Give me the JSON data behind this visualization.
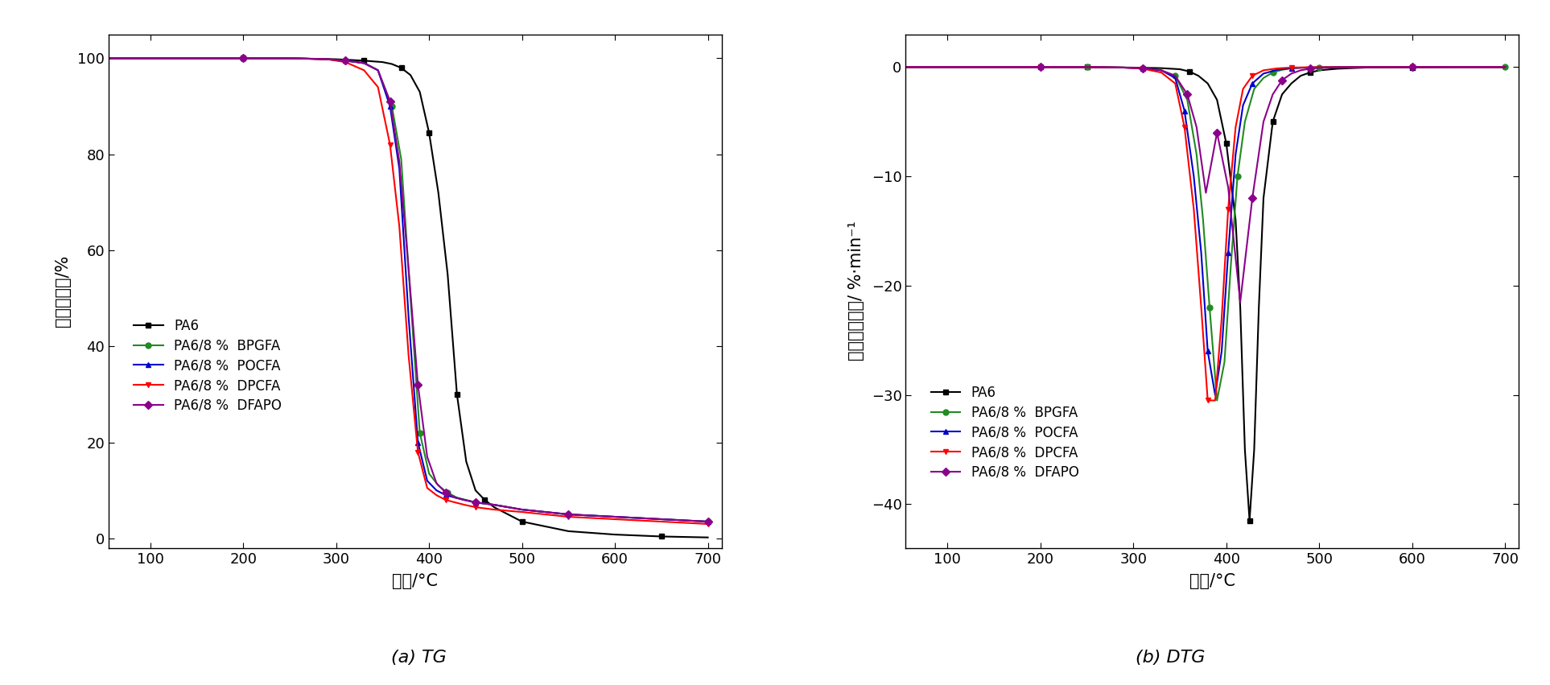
{
  "tg_curves": {
    "PA6": {
      "x": [
        50,
        100,
        150,
        200,
        250,
        300,
        330,
        350,
        360,
        370,
        380,
        390,
        400,
        410,
        420,
        430,
        440,
        450,
        460,
        470,
        480,
        500,
        550,
        600,
        650,
        700
      ],
      "y": [
        100,
        100,
        100,
        100,
        100,
        99.8,
        99.5,
        99.2,
        98.8,
        98.0,
        96.5,
        93.0,
        84.5,
        72.0,
        55.0,
        30.0,
        16.0,
        10.0,
        8.0,
        6.5,
        5.5,
        3.5,
        1.5,
        0.8,
        0.4,
        0.2
      ],
      "color": "#000000",
      "marker": "s"
    },
    "BPGFA": {
      "x": [
        50,
        100,
        150,
        200,
        250,
        290,
        310,
        330,
        345,
        360,
        370,
        380,
        390,
        400,
        410,
        420,
        430,
        440,
        450,
        470,
        500,
        550,
        600,
        650,
        700
      ],
      "y": [
        100,
        100,
        100,
        100,
        100,
        99.8,
        99.5,
        99.0,
        97.5,
        90.0,
        79.0,
        50.0,
        22.0,
        13.5,
        11.0,
        9.5,
        8.5,
        8.0,
        7.5,
        7.0,
        6.0,
        5.0,
        4.5,
        4.0,
        3.5
      ],
      "color": "#228B22",
      "marker": "o"
    },
    "POCFA": {
      "x": [
        50,
        100,
        150,
        200,
        250,
        290,
        310,
        330,
        345,
        358,
        368,
        378,
        388,
        398,
        408,
        418,
        428,
        438,
        450,
        470,
        500,
        550,
        600,
        650,
        700
      ],
      "y": [
        100,
        100,
        100,
        100,
        100,
        99.8,
        99.5,
        99.0,
        97.5,
        90.0,
        77.0,
        46.0,
        20.0,
        12.0,
        10.0,
        9.0,
        8.5,
        8.0,
        7.5,
        7.0,
        6.0,
        5.0,
        4.5,
        4.0,
        3.5
      ],
      "color": "#0000CD",
      "marker": "^"
    },
    "DPCFA": {
      "x": [
        50,
        100,
        150,
        200,
        250,
        290,
        310,
        330,
        345,
        358,
        368,
        378,
        388,
        398,
        408,
        418,
        428,
        438,
        450,
        470,
        500,
        550,
        600,
        650,
        700
      ],
      "y": [
        100,
        100,
        100,
        100,
        100,
        99.8,
        99.2,
        97.5,
        94.0,
        82.0,
        65.0,
        38.0,
        18.0,
        10.5,
        9.0,
        8.0,
        7.5,
        7.0,
        6.5,
        6.0,
        5.5,
        4.5,
        4.0,
        3.5,
        3.0
      ],
      "color": "#FF0000",
      "marker": "v"
    },
    "DFAPO": {
      "x": [
        50,
        100,
        150,
        200,
        250,
        290,
        310,
        330,
        345,
        358,
        368,
        378,
        388,
        398,
        408,
        418,
        428,
        438,
        450,
        470,
        500,
        550,
        600,
        650,
        700
      ],
      "y": [
        100,
        100,
        100,
        100,
        100,
        99.8,
        99.5,
        99.0,
        97.5,
        91.0,
        78.5,
        56.0,
        32.0,
        17.0,
        11.5,
        9.5,
        8.5,
        8.0,
        7.5,
        7.0,
        6.0,
        5.0,
        4.5,
        4.0,
        3.5
      ],
      "color": "#8B008B",
      "marker": "D"
    }
  },
  "dtg_curves": {
    "PA6": {
      "x": [
        50,
        100,
        150,
        200,
        250,
        300,
        330,
        350,
        360,
        370,
        380,
        390,
        400,
        410,
        415,
        420,
        425,
        430,
        435,
        440,
        450,
        460,
        470,
        480,
        490,
        500,
        520,
        550,
        600,
        650,
        700
      ],
      "y": [
        0,
        0,
        0,
        0,
        0,
        -0.05,
        -0.1,
        -0.2,
        -0.4,
        -0.8,
        -1.5,
        -3.0,
        -7.0,
        -14.0,
        -22.0,
        -35.0,
        -41.5,
        -35.0,
        -22.0,
        -12.0,
        -5.0,
        -2.5,
        -1.5,
        -0.8,
        -0.5,
        -0.3,
        -0.15,
        -0.05,
        -0.02,
        0,
        0
      ],
      "color": "#000000",
      "marker": "s"
    },
    "BPGFA": {
      "x": [
        50,
        100,
        150,
        200,
        250,
        290,
        310,
        330,
        345,
        358,
        368,
        375,
        382,
        390,
        398,
        405,
        412,
        420,
        430,
        440,
        450,
        460,
        470,
        480,
        500,
        550,
        600,
        650,
        700
      ],
      "y": [
        0,
        0,
        0,
        0,
        0,
        -0.05,
        -0.1,
        -0.3,
        -0.8,
        -3.0,
        -8.0,
        -14.0,
        -22.0,
        -30.5,
        -27.0,
        -18.0,
        -10.0,
        -5.0,
        -2.0,
        -1.0,
        -0.5,
        -0.25,
        -0.12,
        -0.06,
        -0.02,
        -0.01,
        0,
        0,
        0
      ],
      "color": "#228B22",
      "marker": "o"
    },
    "POCFA": {
      "x": [
        50,
        100,
        150,
        200,
        250,
        290,
        310,
        330,
        345,
        355,
        365,
        373,
        380,
        388,
        395,
        402,
        410,
        418,
        428,
        440,
        455,
        470,
        490,
        520,
        600,
        700
      ],
      "y": [
        0,
        0,
        0,
        0,
        0,
        -0.05,
        -0.1,
        -0.3,
        -1.0,
        -4.0,
        -10.0,
        -17.0,
        -26.0,
        -30.0,
        -26.0,
        -17.0,
        -8.0,
        -3.5,
        -1.5,
        -0.6,
        -0.25,
        -0.1,
        -0.04,
        -0.01,
        0,
        0
      ],
      "color": "#0000CD",
      "marker": "^"
    },
    "DPCFA": {
      "x": [
        50,
        100,
        150,
        200,
        250,
        290,
        310,
        330,
        345,
        355,
        365,
        373,
        380,
        388,
        395,
        402,
        410,
        418,
        428,
        440,
        455,
        470,
        490,
        520,
        600,
        700
      ],
      "y": [
        0,
        0,
        0,
        0,
        0,
        -0.05,
        -0.15,
        -0.5,
        -1.5,
        -5.5,
        -13.0,
        -22.0,
        -30.5,
        -30.5,
        -23.0,
        -13.0,
        -5.5,
        -2.0,
        -0.8,
        -0.3,
        -0.12,
        -0.05,
        -0.02,
        -0.01,
        0,
        0
      ],
      "color": "#FF0000",
      "marker": "v"
    },
    "DFAPO": {
      "x": [
        50,
        100,
        150,
        200,
        250,
        290,
        310,
        330,
        345,
        358,
        368,
        378,
        390,
        402,
        415,
        428,
        440,
        450,
        460,
        470,
        480,
        490,
        500,
        520,
        600,
        700
      ],
      "y": [
        0,
        0,
        0,
        0,
        0,
        -0.05,
        -0.1,
        -0.3,
        -0.8,
        -2.5,
        -5.5,
        -11.5,
        -6.0,
        -11.0,
        -21.5,
        -12.0,
        -5.0,
        -2.5,
        -1.2,
        -0.6,
        -0.3,
        -0.15,
        -0.08,
        -0.02,
        0,
        0
      ],
      "color": "#8B008B",
      "marker": "D"
    }
  },
  "legend_labels": {
    "PA6": "PA6",
    "BPGFA": "PA6/8 %  BPGFA",
    "POCFA": "PA6/8 %  POCFA",
    "DPCFA": "PA6/8 %  DPCFA",
    "DFAPO": "PA6/8 %  DFAPO"
  },
  "tg_xlabel": "温度/°C",
  "tg_ylabel": "保留质量率/%",
  "dtg_xlabel": "温度/°C",
  "dtg_ylabel": "质量变化速率/ %·min⁻¹",
  "tg_caption": "(a) TG",
  "dtg_caption": "(b) DTG",
  "tg_xlim": [
    55,
    715
  ],
  "tg_ylim": [
    -2,
    105
  ],
  "dtg_xlim": [
    55,
    715
  ],
  "dtg_ylim": [
    -44,
    3
  ],
  "xticks": [
    100,
    200,
    300,
    400,
    500,
    600,
    700
  ],
  "tg_yticks": [
    0,
    20,
    40,
    60,
    80,
    100
  ],
  "dtg_yticks": [
    0,
    -10,
    -20,
    -30,
    -40
  ],
  "marker_size": 5,
  "linewidth": 1.5
}
